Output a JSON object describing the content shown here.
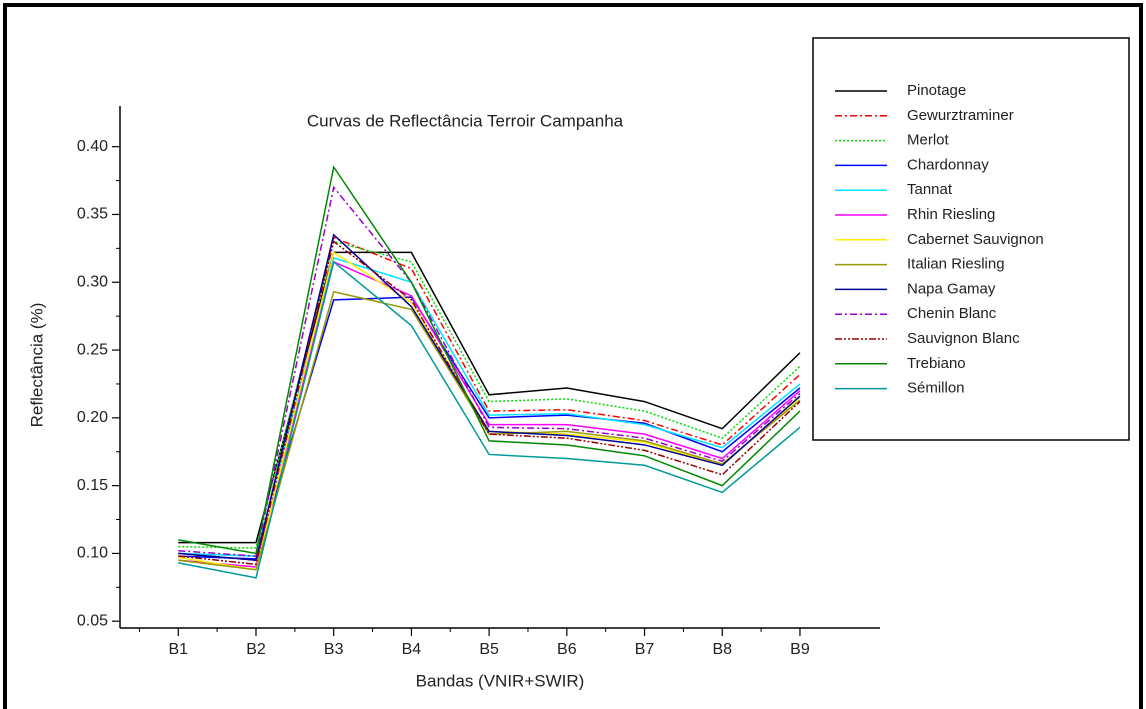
{
  "chart_data": {
    "type": "line",
    "title": "Curvas de Reflectância Terroir Campanha",
    "x_label": "Bandas (VNIR+SWIR)",
    "y_label": "Reflectância (%)",
    "categories": [
      "B1",
      "B2",
      "B3",
      "B4",
      "B5",
      "B6",
      "B7",
      "B8",
      "B9"
    ],
    "ylim": [
      0.045,
      0.43
    ],
    "yticks": [
      0.05,
      {
        "value": 0.1,
        "label": "0.10"
      },
      0.15,
      {
        "value": 0.2,
        "label": "0.20"
      },
      0.25,
      {
        "value": 0.3,
        "label": "0.30"
      },
      0.35,
      {
        "value": 0.4,
        "label": "0.40"
      }
    ],
    "legend": "upper right",
    "series": [
      {
        "name": "Pinotage",
        "color": "#000000",
        "linestyle": "solid",
        "values": [
          0.108,
          0.108,
          0.322,
          0.322,
          0.217,
          0.222,
          0.212,
          0.192,
          0.248
        ]
      },
      {
        "name": "Gewurztraminer",
        "color": "#ff0000",
        "linestyle": "dashdot",
        "values": [
          0.1,
          0.095,
          0.333,
          0.31,
          0.205,
          0.206,
          0.198,
          0.18,
          0.232
        ]
      },
      {
        "name": "Merlot",
        "color": "#00dd00",
        "linestyle": "dotted",
        "values": [
          0.105,
          0.104,
          0.33,
          0.315,
          0.212,
          0.214,
          0.205,
          0.185,
          0.238
        ]
      },
      {
        "name": "Chardonnay",
        "color": "#0000ff",
        "linestyle": "solid",
        "values": [
          0.098,
          0.096,
          0.287,
          0.289,
          0.2,
          0.202,
          0.196,
          0.175,
          0.222
        ]
      },
      {
        "name": "Tannat",
        "color": "#00e5ff",
        "linestyle": "solid",
        "values": [
          0.1,
          0.098,
          0.318,
          0.3,
          0.202,
          0.203,
          0.195,
          0.178,
          0.225
        ]
      },
      {
        "name": "Rhin Riesling",
        "color": "#ff00ff",
        "linestyle": "solid",
        "values": [
          0.095,
          0.09,
          0.315,
          0.29,
          0.195,
          0.195,
          0.188,
          0.17,
          0.22
        ]
      },
      {
        "name": "Cabernet Sauvignon",
        "color": "#ffee00",
        "linestyle": "solid",
        "values": [
          0.097,
          0.088,
          0.322,
          0.285,
          0.19,
          0.188,
          0.182,
          0.165,
          0.215
        ]
      },
      {
        "name": "Italian Riesling",
        "color": "#999900",
        "linestyle": "solid",
        "values": [
          0.095,
          0.088,
          0.293,
          0.28,
          0.188,
          0.19,
          0.183,
          0.166,
          0.213
        ]
      },
      {
        "name": "Napa Gamay",
        "color": "#000099",
        "linestyle": "solid",
        "values": [
          0.1,
          0.095,
          0.335,
          0.282,
          0.19,
          0.187,
          0.18,
          0.165,
          0.216
        ]
      },
      {
        "name": "Chenin Blanc",
        "color": "#9900cc",
        "linestyle": "dashdot",
        "values": [
          0.102,
          0.098,
          0.37,
          0.3,
          0.193,
          0.192,
          0.185,
          0.168,
          0.218
        ]
      },
      {
        "name": "Sauvignon Blanc",
        "color": "#990000",
        "linestyle": "dashdotdot",
        "values": [
          0.098,
          0.092,
          0.33,
          0.287,
          0.188,
          0.185,
          0.176,
          0.158,
          0.212
        ]
      },
      {
        "name": "Trebiano",
        "color": "#008800",
        "linestyle": "solid",
        "values": [
          0.11,
          0.1,
          0.385,
          0.3,
          0.183,
          0.18,
          0.172,
          0.15,
          0.205
        ]
      },
      {
        "name": "Sémillon",
        "color": "#009999",
        "linestyle": "solid",
        "values": [
          0.093,
          0.082,
          0.315,
          0.268,
          0.173,
          0.17,
          0.165,
          0.145,
          0.193
        ]
      }
    ]
  }
}
